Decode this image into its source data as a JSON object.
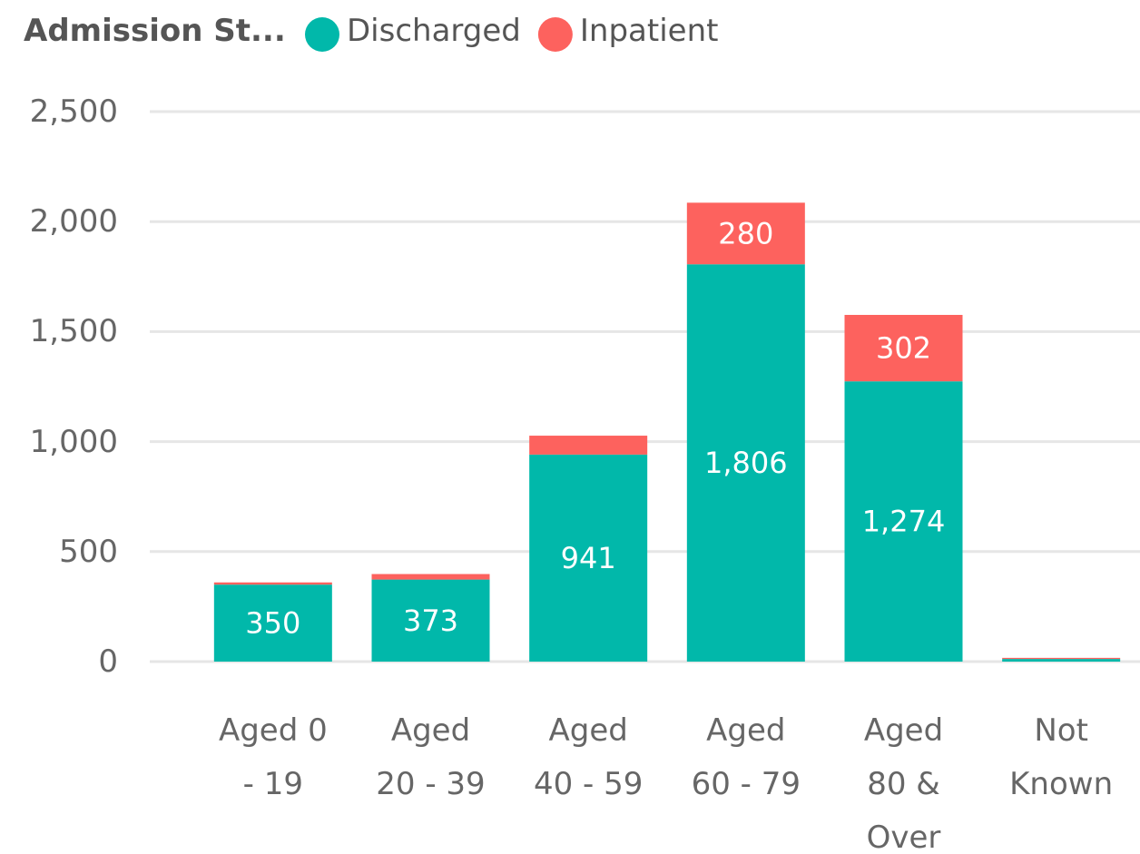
{
  "chart_data": {
    "type": "stacked_bar",
    "legend_title": "Admission St...",
    "categories": [
      "Aged 0 - 19",
      "Aged 20 - 39",
      "Aged 40 - 59",
      "Aged 60 - 79",
      "Aged 80 & Over",
      "Not Known"
    ],
    "series": [
      {
        "name": "Discharged",
        "color": "#01B8AA",
        "values": [
          350,
          373,
          941,
          1806,
          1274,
          12
        ],
        "value_labels": [
          "350",
          "373",
          "941",
          "1,806",
          "1,274",
          null
        ]
      },
      {
        "name": "Inpatient",
        "color": "#FD625E",
        "values": [
          10,
          25,
          86,
          280,
          302,
          5
        ],
        "value_labels": [
          null,
          null,
          null,
          "280",
          "302",
          null
        ]
      }
    ],
    "ylim": [
      0,
      2500
    ],
    "yticks": [
      0,
      {
        "value": 500,
        "label": "500"
      },
      {
        "value": 1000,
        "label": "1,000"
      },
      {
        "value": 1500,
        "label": "1,500"
      },
      {
        "value": 2000,
        "label": "2,000"
      },
      {
        "value": 2500,
        "label": "2,500"
      }
    ],
    "grid": true,
    "legend": "top-left"
  }
}
